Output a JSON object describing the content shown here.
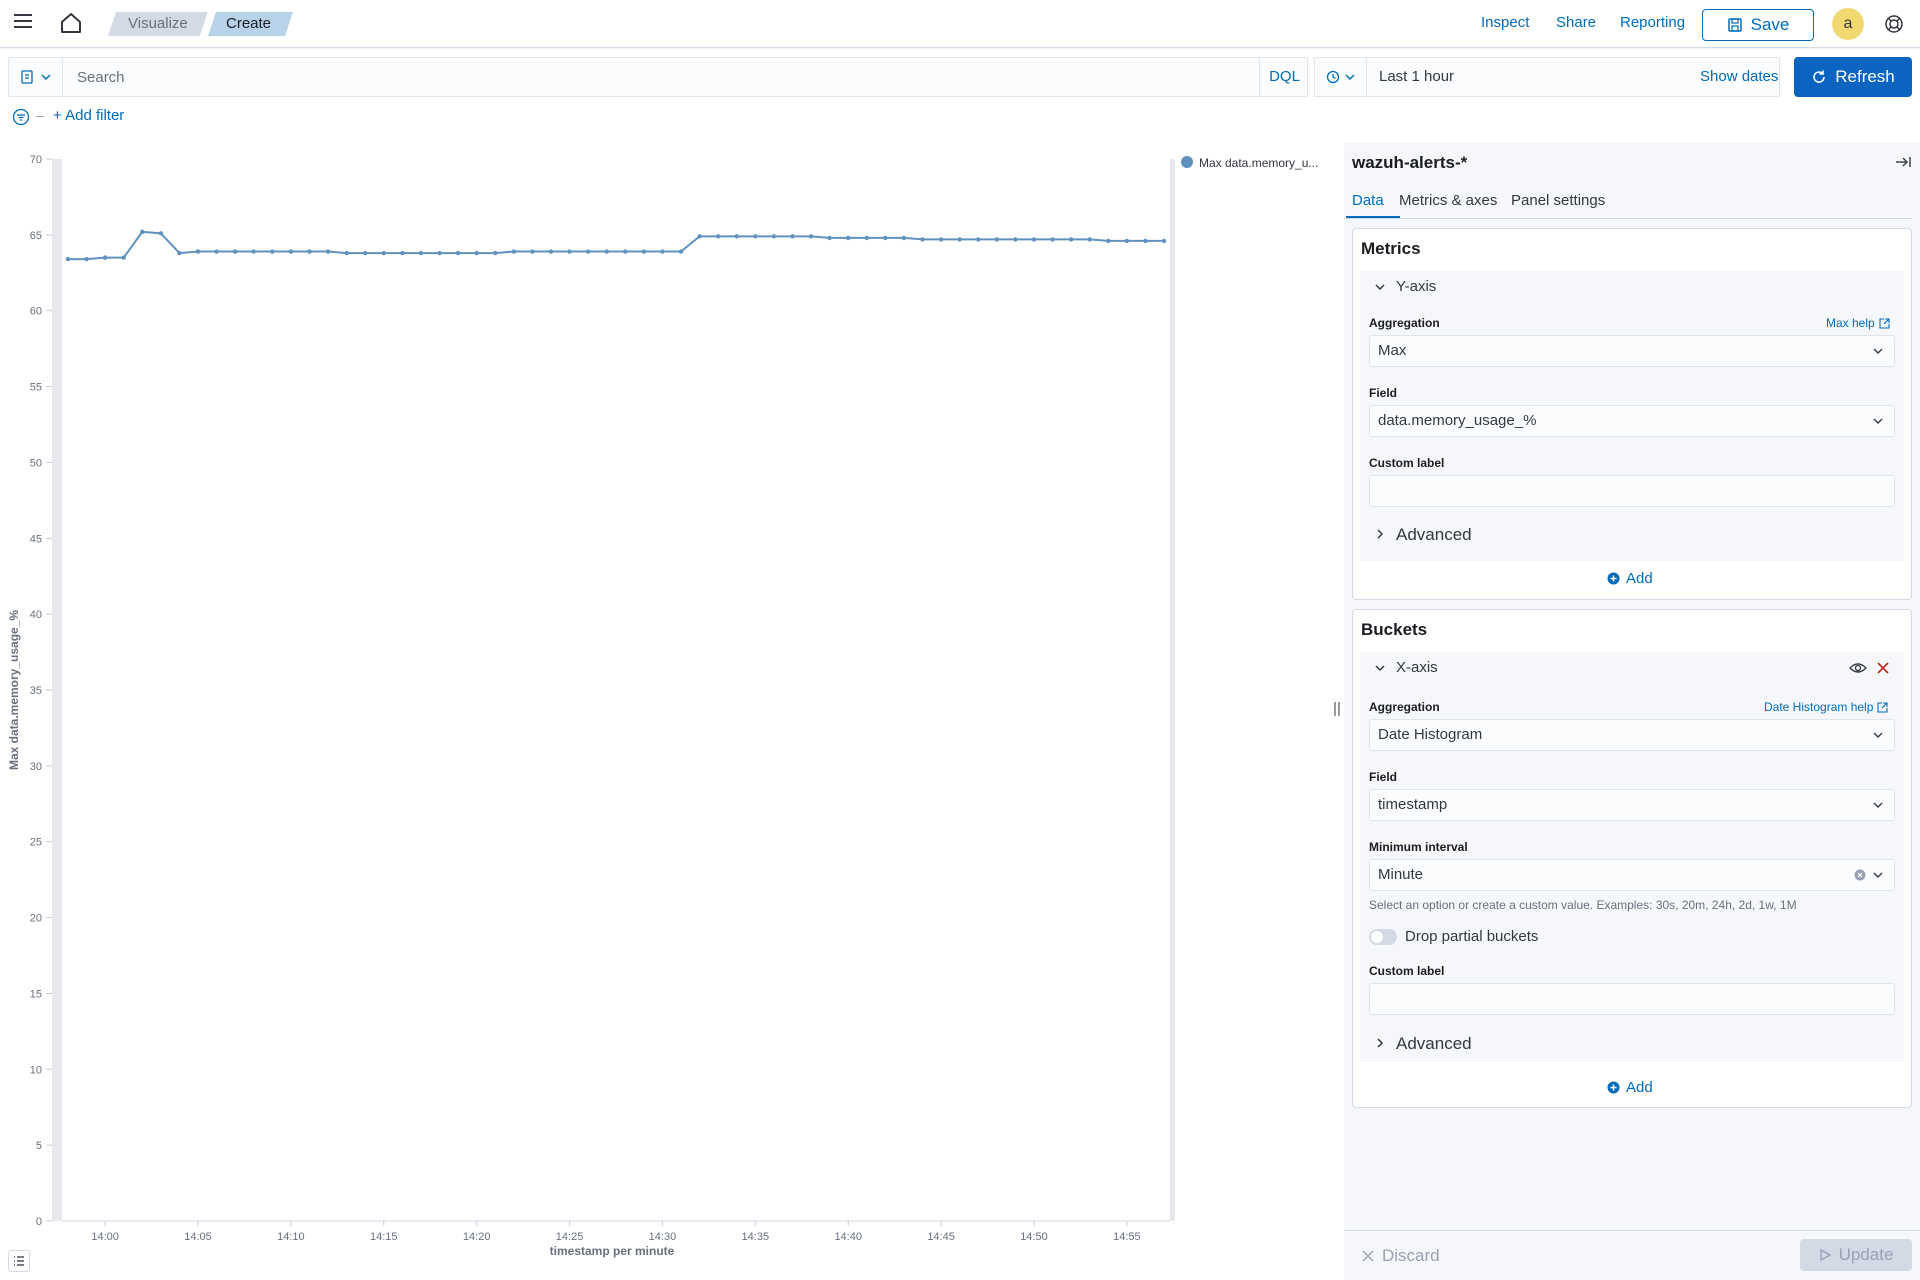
{
  "header": {
    "breadcrumbs": [
      "Visualize",
      "Create"
    ],
    "links": [
      "Inspect",
      "Share",
      "Reporting"
    ],
    "save_label": "Save",
    "avatar_letter": "a"
  },
  "query": {
    "placeholder": "Search",
    "language": "DQL",
    "time_range": "Last 1 hour",
    "show_dates": "Show dates",
    "refresh": "Refresh",
    "add_filter": "+ Add filter"
  },
  "sidebar": {
    "index_pattern": "wazuh-alerts-*",
    "tabs": [
      "Data",
      "Metrics & axes",
      "Panel settings"
    ],
    "metrics": {
      "title": "Metrics",
      "agg_name": "Y-axis",
      "aggregation_label": "Aggregation",
      "aggregation_help": "Max help",
      "aggregation_value": "Max",
      "field_label": "Field",
      "field_value": "data.memory_usage_%",
      "custom_label": "Custom label",
      "advanced": "Advanced",
      "add": "Add"
    },
    "buckets": {
      "title": "Buckets",
      "agg_name": "X-axis",
      "aggregation_label": "Aggregation",
      "aggregation_help": "Date Histogram help",
      "aggregation_value": "Date Histogram",
      "field_label": "Field",
      "field_value": "timestamp",
      "interval_label": "Minimum interval",
      "interval_value": "Minute",
      "interval_help": "Select an option or create a custom value. Examples: 30s, 20m, 24h, 2d, 1w, 1M",
      "drop_partial": "Drop partial buckets",
      "custom_label": "Custom label",
      "advanced": "Advanced",
      "add": "Add"
    },
    "discard": "Discard",
    "update": "Update"
  },
  "chart_data": {
    "type": "line",
    "xlabel": "timestamp per minute",
    "ylabel": "Max data.memory_usage_%",
    "ylim": [
      0,
      70
    ],
    "yticks": [
      0,
      5,
      10,
      15,
      20,
      25,
      30,
      35,
      40,
      45,
      50,
      55,
      60,
      65,
      70
    ],
    "xticks": [
      "14:00",
      "14:05",
      "14:10",
      "14:15",
      "14:20",
      "14:25",
      "14:30",
      "14:35",
      "14:40",
      "14:45",
      "14:50",
      "14:55"
    ],
    "legend": "top-right",
    "line_color": "#6092c0",
    "x_start": "13:58",
    "x_end": "14:57",
    "series": [
      {
        "name": "Max data.memory_u...",
        "x": [
          "13:58",
          "13:59",
          "14:00",
          "14:01",
          "14:02",
          "14:03",
          "14:04",
          "14:05",
          "14:06",
          "14:07",
          "14:08",
          "14:09",
          "14:10",
          "14:11",
          "14:12",
          "14:13",
          "14:14",
          "14:15",
          "14:16",
          "14:17",
          "14:18",
          "14:19",
          "14:20",
          "14:21",
          "14:22",
          "14:23",
          "14:24",
          "14:25",
          "14:26",
          "14:27",
          "14:28",
          "14:29",
          "14:30",
          "14:31",
          "14:32",
          "14:33",
          "14:34",
          "14:35",
          "14:36",
          "14:37",
          "14:38",
          "14:39",
          "14:40",
          "14:41",
          "14:42",
          "14:43",
          "14:44",
          "14:45",
          "14:46",
          "14:47",
          "14:48",
          "14:49",
          "14:50",
          "14:51",
          "14:52",
          "14:53",
          "14:54",
          "14:55",
          "14:56",
          "14:57"
        ],
        "values": [
          63.4,
          63.4,
          63.5,
          63.5,
          65.2,
          65.1,
          63.8,
          63.9,
          63.9,
          63.9,
          63.9,
          63.9,
          63.9,
          63.9,
          63.9,
          63.8,
          63.8,
          63.8,
          63.8,
          63.8,
          63.8,
          63.8,
          63.8,
          63.8,
          63.9,
          63.9,
          63.9,
          63.9,
          63.9,
          63.9,
          63.9,
          63.9,
          63.9,
          63.9,
          64.9,
          64.9,
          64.9,
          64.9,
          64.9,
          64.9,
          64.9,
          64.8,
          64.8,
          64.8,
          64.8,
          64.8,
          64.7,
          64.7,
          64.7,
          64.7,
          64.7,
          64.7,
          64.7,
          64.7,
          64.7,
          64.7,
          64.6,
          64.6,
          64.6,
          64.6
        ]
      }
    ]
  }
}
